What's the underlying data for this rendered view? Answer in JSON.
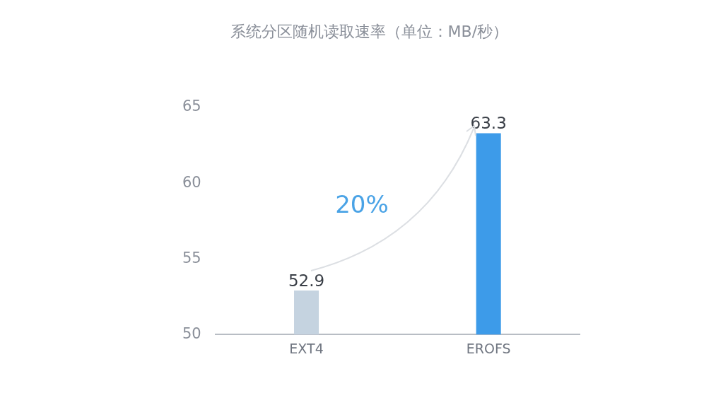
{
  "chart_data": {
    "type": "bar",
    "title": "系统分区随机读取速率（单位：MB/秒）",
    "categories": [
      "EXT4",
      "EROFS"
    ],
    "values": [
      52.9,
      63.3
    ],
    "colors": [
      "#c5d3e0",
      "#3d9be9"
    ],
    "ylim": [
      50,
      65
    ],
    "yticks": [
      50,
      55,
      60,
      65
    ],
    "data_labels": true,
    "annotations": [
      "20%"
    ]
  }
}
